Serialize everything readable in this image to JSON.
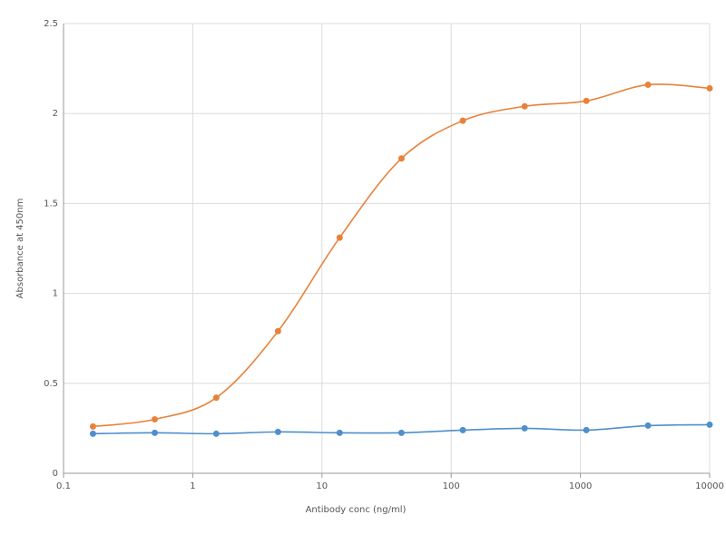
{
  "chart_data": {
    "type": "line",
    "x_label": "Antibody conc (ng/ml)",
    "y_label": "Absorbance at 450nm",
    "x": [
      0.169,
      0.508,
      1.52,
      4.57,
      13.7,
      41.2,
      123,
      370,
      1111,
      3333,
      10000
    ],
    "series": [
      {
        "color": "#e8823a",
        "values": [
          0.26,
          0.3,
          0.42,
          0.79,
          1.31,
          1.75,
          1.96,
          2.04,
          2.07,
          2.16,
          2.14
        ]
      },
      {
        "color": "#4f8fcb",
        "values": [
          0.22,
          0.225,
          0.22,
          0.23,
          0.225,
          0.225,
          0.24,
          0.25,
          0.24,
          0.265,
          0.27
        ]
      }
    ],
    "xscale": "log",
    "xlim": [
      0.1,
      10000
    ],
    "xticks": [
      0.1,
      1,
      10,
      100,
      1000,
      10000
    ],
    "ylim": [
      0,
      2.5
    ],
    "yticks": [
      0,
      0.5,
      1,
      1.5,
      2,
      2.5
    ],
    "grid": true
  }
}
